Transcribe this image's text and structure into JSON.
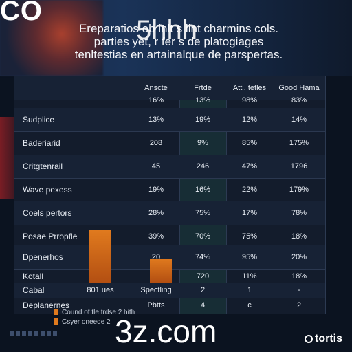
{
  "background": {
    "logo_text": "CO"
  },
  "caption": {
    "line1": "Ereparatios ob inlt s lint charmins cols.",
    "line2": "parties  yet, r fer s  de platogiages",
    "line3": "tenltestias en artainalque de parspertas."
  },
  "watermarks": {
    "top": "5hhh",
    "bottom": "3z.com"
  },
  "table": {
    "headers": [
      "Anscte",
      "Frtde",
      "Attl. tetles",
      "Good Hama"
    ],
    "rows": [
      {
        "label": "",
        "values": [
          "16%",
          "13%",
          "98%",
          "83%"
        ]
      },
      {
        "label": "Sudplice",
        "values": [
          "13%",
          "19%",
          "12%",
          "14%"
        ]
      },
      {
        "label": "Baderiarid",
        "values": [
          "208",
          "9%",
          "85%",
          "175%"
        ]
      },
      {
        "label": "Critgtenrail",
        "values": [
          "45",
          "246",
          "47%",
          "1796"
        ]
      },
      {
        "label": "Wave pexess",
        "values": [
          "19%",
          "16%",
          "22%",
          "179%"
        ]
      },
      {
        "label": "Coels pertors",
        "values": [
          "28%",
          "75%",
          "17%",
          "78%"
        ]
      },
      {
        "label": "Posae Prropfle",
        "values": [
          "39%",
          "70%",
          "75%",
          "18%"
        ]
      },
      {
        "label": "Dpenerhos",
        "values": [
          "20",
          "74%",
          "95%",
          "20%"
        ]
      },
      {
        "label": "Kotall",
        "values": [
          "",
          "720",
          "11%",
          "18%"
        ]
      },
      {
        "label": "Cabal",
        "values": [
          "Spectling",
          "2",
          "1",
          "-"
        ]
      },
      {
        "label": "Deplanernes",
        "values": [
          "Pbtts",
          "4",
          "c",
          "2"
        ]
      }
    ],
    "extra_label": "801 ues"
  },
  "bars": {
    "color": "#e07a1e",
    "items": []
  },
  "legend": {
    "line1": "Cound of tle trdse  2 hith",
    "line2": "Csyer oneede 2"
  },
  "brand": {
    "name": "tortis"
  }
}
